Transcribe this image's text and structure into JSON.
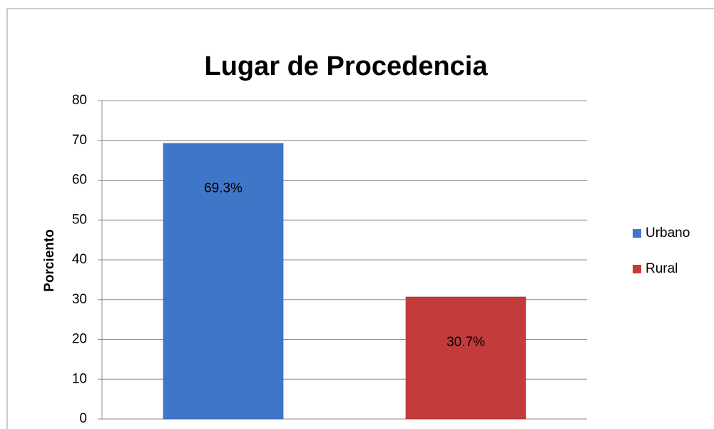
{
  "chart_data": {
    "type": "bar",
    "title": "Lugar de Procedencia",
    "y_label": "Porciento",
    "categories": [
      null
    ],
    "series": [
      {
        "name": "Urbano",
        "color": "#3f77c8",
        "values": [
          69.3
        ],
        "value_labels": [
          "69.3%"
        ]
      },
      {
        "name": "Rural",
        "color": "#c33b3b",
        "values": [
          30.7
        ],
        "value_labels": [
          "30.7%"
        ]
      }
    ],
    "ylim": [
      0,
      80
    ],
    "yticks": [
      0,
      10,
      20,
      30,
      40,
      50,
      60,
      70,
      80
    ],
    "grid": true,
    "legend": "right"
  }
}
